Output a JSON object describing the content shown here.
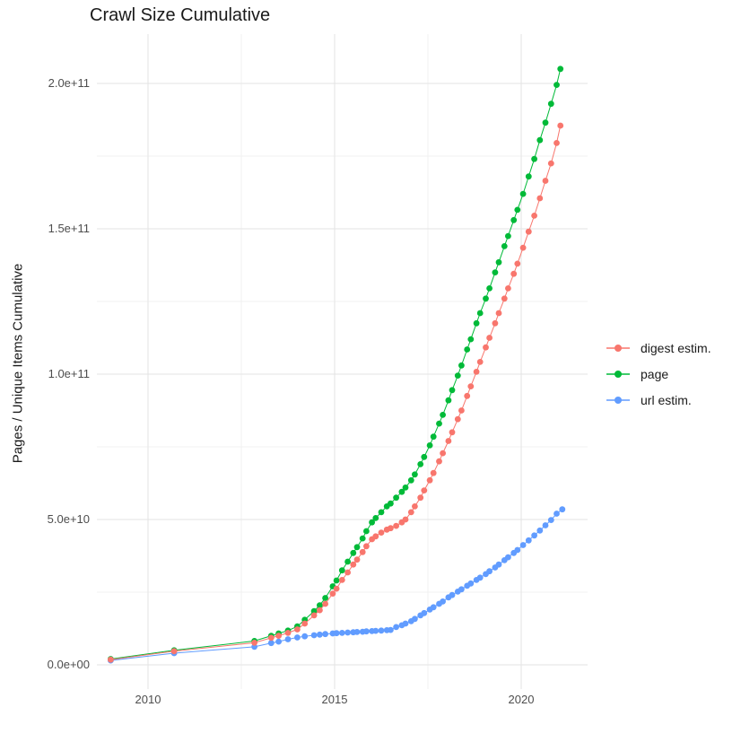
{
  "title": "Crawl Size Cumulative",
  "y_axis_title": "Pages / Unique Items Cumulative",
  "chart_data": {
    "type": "scatter",
    "title": "Crawl Size Cumulative",
    "xlabel": "",
    "ylabel": "Pages / Unique Items Cumulative",
    "xlim": [
      2008.6,
      2021.8
    ],
    "ylim": [
      -8300000000.0,
      217000000000.0
    ],
    "x_ticks": [
      2010,
      2015,
      2020
    ],
    "x_tick_labels": [
      "2010",
      "2015",
      "2020"
    ],
    "y_ticks": [
      0,
      50000000000.0,
      100000000000.0,
      150000000000.0,
      200000000000.0
    ],
    "y_tick_labels": [
      "0.0e+00",
      "5.0e+10",
      "1.0e+11",
      "1.5e+11",
      "2.0e+11"
    ],
    "grid": true,
    "legend_position": "right",
    "series": [
      {
        "name": "digest estim.",
        "color": "#F8766D",
        "points": [
          [
            2009,
            1800000000.0
          ],
          [
            2010.7,
            4700000000.0
          ],
          [
            2012.85,
            7600000000.0
          ],
          [
            2013.3,
            9300000000.0
          ],
          [
            2013.5,
            10000000000.0
          ],
          [
            2013.75,
            11000000000.0
          ],
          [
            2014,
            12200000000.0
          ],
          [
            2014.2,
            14200000000.0
          ],
          [
            2014.45,
            17000000000.0
          ],
          [
            2014.6,
            18800000000.0
          ],
          [
            2014.75,
            21000000000.0
          ],
          [
            2014.95,
            24500000000.0
          ],
          [
            2015.05,
            26200000000.0
          ],
          [
            2015.2,
            29200000000.0
          ],
          [
            2015.35,
            31800000000.0
          ],
          [
            2015.5,
            34500000000.0
          ],
          [
            2015.6,
            36200000000.0
          ],
          [
            2015.75,
            38800000000.0
          ],
          [
            2015.85,
            40800000000.0
          ],
          [
            2016,
            43200000000.0
          ],
          [
            2016.1,
            44200000000.0
          ],
          [
            2016.25,
            45500000000.0
          ],
          [
            2016.4,
            46500000000.0
          ],
          [
            2016.5,
            47000000000.0
          ],
          [
            2016.65,
            47800000000.0
          ],
          [
            2016.8,
            49000000000.0
          ],
          [
            2016.9,
            50000000000.0
          ],
          [
            2017.05,
            52500000000.0
          ],
          [
            2017.15,
            54500000000.0
          ],
          [
            2017.3,
            57500000000.0
          ],
          [
            2017.4,
            60000000000.0
          ],
          [
            2017.55,
            63500000000.0
          ],
          [
            2017.65,
            66000000000.0
          ],
          [
            2017.8,
            70000000000.0
          ],
          [
            2017.9,
            72800000000.0
          ],
          [
            2018.05,
            77000000000.0
          ],
          [
            2018.15,
            80000000000.0
          ],
          [
            2018.3,
            84500000000.0
          ],
          [
            2018.4,
            87500000000.0
          ],
          [
            2018.55,
            92500000000.0
          ],
          [
            2018.65,
            95800000000.0
          ],
          [
            2018.8,
            100800000000.0
          ],
          [
            2018.9,
            104200000000.0
          ],
          [
            2019.05,
            109200000000.0
          ],
          [
            2019.15,
            112500000000.0
          ],
          [
            2019.3,
            117500000000.0
          ],
          [
            2019.4,
            121000000000.0
          ],
          [
            2019.55,
            126000000000.0
          ],
          [
            2019.65,
            129500000000.0
          ],
          [
            2019.8,
            134500000000.0
          ],
          [
            2019.9,
            138000000000.0
          ],
          [
            2020.05,
            143500000000.0
          ],
          [
            2020.2,
            149000000000.0
          ],
          [
            2020.35,
            154500000000.0
          ],
          [
            2020.5,
            160500000000.0
          ],
          [
            2020.65,
            166500000000.0
          ],
          [
            2020.8,
            172500000000.0
          ],
          [
            2020.95,
            179500000000.0
          ],
          [
            2021.05,
            185500000000.0
          ]
        ]
      },
      {
        "name": "page",
        "color": "#00BA38",
        "points": [
          [
            2009,
            2000000000.0
          ],
          [
            2010.7,
            5000000000.0
          ],
          [
            2012.85,
            8200000000.0
          ],
          [
            2013.3,
            10000000000.0
          ],
          [
            2013.5,
            10800000000.0
          ],
          [
            2013.75,
            11800000000.0
          ],
          [
            2014,
            13200000000.0
          ],
          [
            2014.2,
            15500000000.0
          ],
          [
            2014.45,
            18500000000.0
          ],
          [
            2014.6,
            20500000000.0
          ],
          [
            2014.75,
            23000000000.0
          ],
          [
            2014.95,
            27000000000.0
          ],
          [
            2015.05,
            29000000000.0
          ],
          [
            2015.2,
            32500000000.0
          ],
          [
            2015.35,
            35500000000.0
          ],
          [
            2015.5,
            38500000000.0
          ],
          [
            2015.6,
            40500000000.0
          ],
          [
            2015.75,
            43500000000.0
          ],
          [
            2015.85,
            46000000000.0
          ],
          [
            2016,
            49000000000.0
          ],
          [
            2016.1,
            50500000000.0
          ],
          [
            2016.25,
            52500000000.0
          ],
          [
            2016.4,
            54500000000.0
          ],
          [
            2016.5,
            55500000000.0
          ],
          [
            2016.65,
            57500000000.0
          ],
          [
            2016.8,
            59500000000.0
          ],
          [
            2016.9,
            61000000000.0
          ],
          [
            2017.05,
            63500000000.0
          ],
          [
            2017.15,
            65500000000.0
          ],
          [
            2017.3,
            69000000000.0
          ],
          [
            2017.4,
            71500000000.0
          ],
          [
            2017.55,
            75500000000.0
          ],
          [
            2017.65,
            78500000000.0
          ],
          [
            2017.8,
            83000000000.0
          ],
          [
            2017.9,
            86000000000.0
          ],
          [
            2018.05,
            91000000000.0
          ],
          [
            2018.15,
            94500000000.0
          ],
          [
            2018.3,
            99500000000.0
          ],
          [
            2018.4,
            103000000000.0
          ],
          [
            2018.55,
            108500000000.0
          ],
          [
            2018.65,
            112000000000.0
          ],
          [
            2018.8,
            117500000000.0
          ],
          [
            2018.9,
            121000000000.0
          ],
          [
            2019.05,
            126000000000.0
          ],
          [
            2019.15,
            129500000000.0
          ],
          [
            2019.3,
            135000000000.0
          ],
          [
            2019.4,
            138500000000.0
          ],
          [
            2019.55,
            144000000000.0
          ],
          [
            2019.65,
            147500000000.0
          ],
          [
            2019.8,
            153000000000.0
          ],
          [
            2019.9,
            156500000000.0
          ],
          [
            2020.05,
            162000000000.0
          ],
          [
            2020.2,
            168000000000.0
          ],
          [
            2020.35,
            174000000000.0
          ],
          [
            2020.5,
            180500000000.0
          ],
          [
            2020.65,
            186500000000.0
          ],
          [
            2020.8,
            193000000000.0
          ],
          [
            2020.95,
            199500000000.0
          ],
          [
            2021.05,
            205000000000.0
          ]
        ]
      },
      {
        "name": "url estim.",
        "color": "#619CFF",
        "points": [
          [
            2009,
            1500000000.0
          ],
          [
            2010.7,
            4000000000.0
          ],
          [
            2012.85,
            6200000000.0
          ],
          [
            2013.3,
            7500000000.0
          ],
          [
            2013.5,
            8000000000.0
          ],
          [
            2013.75,
            8800000000.0
          ],
          [
            2014,
            9400000000.0
          ],
          [
            2014.2,
            9800000000.0
          ],
          [
            2014.45,
            10200000000.0
          ],
          [
            2014.6,
            10400000000.0
          ],
          [
            2014.75,
            10600000000.0
          ],
          [
            2014.95,
            10800000000.0
          ],
          [
            2015.05,
            10900000000.0
          ],
          [
            2015.2,
            11000000000.0
          ],
          [
            2015.35,
            11100000000.0
          ],
          [
            2015.5,
            11200000000.0
          ],
          [
            2015.6,
            11300000000.0
          ],
          [
            2015.75,
            11400000000.0
          ],
          [
            2015.85,
            11500000000.0
          ],
          [
            2016,
            11600000000.0
          ],
          [
            2016.1,
            11700000000.0
          ],
          [
            2016.25,
            11800000000.0
          ],
          [
            2016.4,
            11900000000.0
          ],
          [
            2016.5,
            12000000000.0
          ],
          [
            2016.65,
            13000000000.0
          ],
          [
            2016.8,
            13600000000.0
          ],
          [
            2016.9,
            14200000000.0
          ],
          [
            2017.05,
            15000000000.0
          ],
          [
            2017.15,
            15800000000.0
          ],
          [
            2017.3,
            17000000000.0
          ],
          [
            2017.4,
            17800000000.0
          ],
          [
            2017.55,
            19000000000.0
          ],
          [
            2017.65,
            19800000000.0
          ],
          [
            2017.8,
            21000000000.0
          ],
          [
            2017.9,
            21800000000.0
          ],
          [
            2018.05,
            23200000000.0
          ],
          [
            2018.15,
            24000000000.0
          ],
          [
            2018.3,
            25200000000.0
          ],
          [
            2018.4,
            26000000000.0
          ],
          [
            2018.55,
            27200000000.0
          ],
          [
            2018.65,
            28000000000.0
          ],
          [
            2018.8,
            29200000000.0
          ],
          [
            2018.9,
            30000000000.0
          ],
          [
            2019.05,
            31200000000.0
          ],
          [
            2019.15,
            32200000000.0
          ],
          [
            2019.3,
            33500000000.0
          ],
          [
            2019.4,
            34500000000.0
          ],
          [
            2019.55,
            36000000000.0
          ],
          [
            2019.65,
            37000000000.0
          ],
          [
            2019.8,
            38500000000.0
          ],
          [
            2019.9,
            39500000000.0
          ],
          [
            2020.05,
            41200000000.0
          ],
          [
            2020.2,
            42800000000.0
          ],
          [
            2020.35,
            44500000000.0
          ],
          [
            2020.5,
            46200000000.0
          ],
          [
            2020.65,
            48000000000.0
          ],
          [
            2020.8,
            49800000000.0
          ],
          [
            2020.95,
            52000000000.0
          ],
          [
            2021.1,
            53500000000.0
          ]
        ]
      }
    ]
  },
  "legend": {
    "items": [
      "digest estim.",
      "page",
      "url estim."
    ]
  }
}
